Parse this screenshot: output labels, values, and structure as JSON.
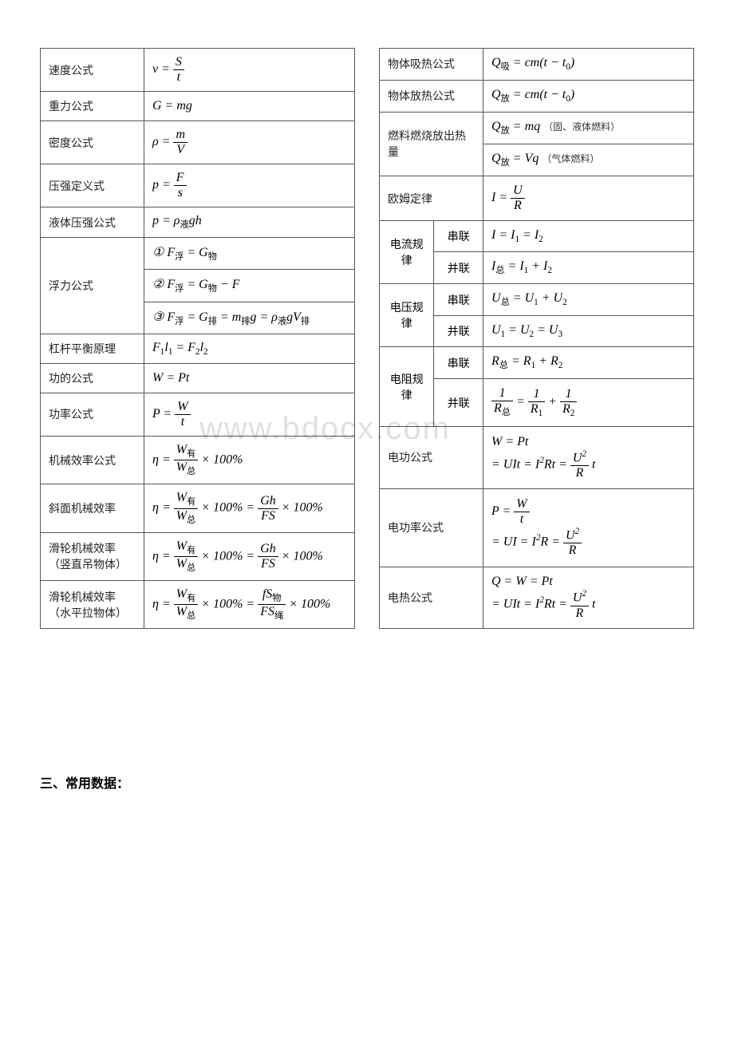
{
  "watermark": "www.bdocx.com",
  "sectionHeading": "三、常用数据：",
  "left": [
    {
      "label": "速度公式",
      "formula": "v = S/t",
      "type": "frac",
      "lhs": "v",
      "num": "S",
      "den": "t"
    },
    {
      "label": "重力公式",
      "formula": "G = mg",
      "type": "plain"
    },
    {
      "label": "密度公式",
      "formula": "ρ = m/V",
      "type": "frac",
      "lhs": "ρ",
      "num": "m",
      "den": "V"
    },
    {
      "label": "压强定义式",
      "formula": "p = F/s",
      "type": "frac",
      "lhs": "p",
      "num": "F",
      "den": "s"
    },
    {
      "label": "液体压强公式",
      "formula": "p = ρ液gh",
      "type": "plain"
    },
    {
      "label": "浮力公式",
      "rowspan": 3,
      "formulas": [
        "① F浮 = G物",
        "② F浮 = G物 − F",
        "③ F浮 = G排 = m排g = ρ液gV排"
      ]
    },
    {
      "label": "杠杆平衡原理",
      "formula": "F₁l₁ = F₂l₂",
      "type": "plain"
    },
    {
      "label": "功的公式",
      "formula": "W = Pt",
      "type": "plain"
    },
    {
      "label": "功率公式",
      "formula": "P = W/t",
      "type": "frac",
      "lhs": "P",
      "num": "W",
      "den": "t"
    },
    {
      "label": "机械效率公式",
      "formula": "η = W有/W总 × 100%",
      "type": "eff1"
    },
    {
      "label": "斜面机械效率",
      "formula": "η = W有/W总 × 100% = Gh/FS × 100%",
      "type": "eff2",
      "num2": "Gh",
      "den2": "FS"
    },
    {
      "label": "滑轮机械效率（竖直吊物体）",
      "formula": "η = W有/W总 × 100% = Gh/FS × 100%",
      "type": "eff2",
      "num2": "Gh",
      "den2": "FS"
    },
    {
      "label": "滑轮机械效率（水平拉物体）",
      "formula": "η = W有/W总 × 100% = fS物/FS绳 × 100%",
      "type": "eff2",
      "num2": "fS物",
      "den2": "FS绳"
    }
  ],
  "right": [
    {
      "label": "物体吸热公式",
      "formula": "Q吸 = cm(t − t₀)"
    },
    {
      "label": "物体放热公式",
      "formula": "Q放 = cm(t − t₀)"
    },
    {
      "label": "燃料燃烧放出热量",
      "rowspan": 2,
      "rows": [
        {
          "formula": "Q放 = mq",
          "note": "（固、液体燃料）"
        },
        {
          "formula": "Q放 = Vq",
          "note": "（气体燃料）"
        }
      ]
    },
    {
      "label": "欧姆定律",
      "formula": "I = U/R",
      "type": "frac",
      "lhs": "I",
      "num": "U",
      "den": "R"
    },
    {
      "group": "电流规律",
      "rows": [
        {
          "sub": "串联",
          "formula": "I = I₁ = I₂"
        },
        {
          "sub": "并联",
          "formula": "I总 = I₁ + I₂"
        }
      ]
    },
    {
      "group": "电压规律",
      "rows": [
        {
          "sub": "串联",
          "formula": "U总 = U₁ + U₂"
        },
        {
          "sub": "并联",
          "formula": "U₁ = U₂ = U₃"
        }
      ]
    },
    {
      "group": "电阻规律",
      "rows": [
        {
          "sub": "串联",
          "formula": "R总 = R₁ + R₂"
        },
        {
          "sub": "并联",
          "formula": "1/R总 = 1/R₁ + 1/R₂",
          "type": "rfrac"
        }
      ]
    },
    {
      "label": "电功公式",
      "formula": "W = Pt = UIt = I²Rt = U²/R·t",
      "type": "work"
    },
    {
      "label": "电功率公式",
      "formula": "P = W/t = UI = I²R = U²/R",
      "type": "power"
    },
    {
      "label": "电热公式",
      "formula": "Q = W = Pt = UIt = I²Rt = U²/R·t",
      "type": "heat"
    }
  ]
}
